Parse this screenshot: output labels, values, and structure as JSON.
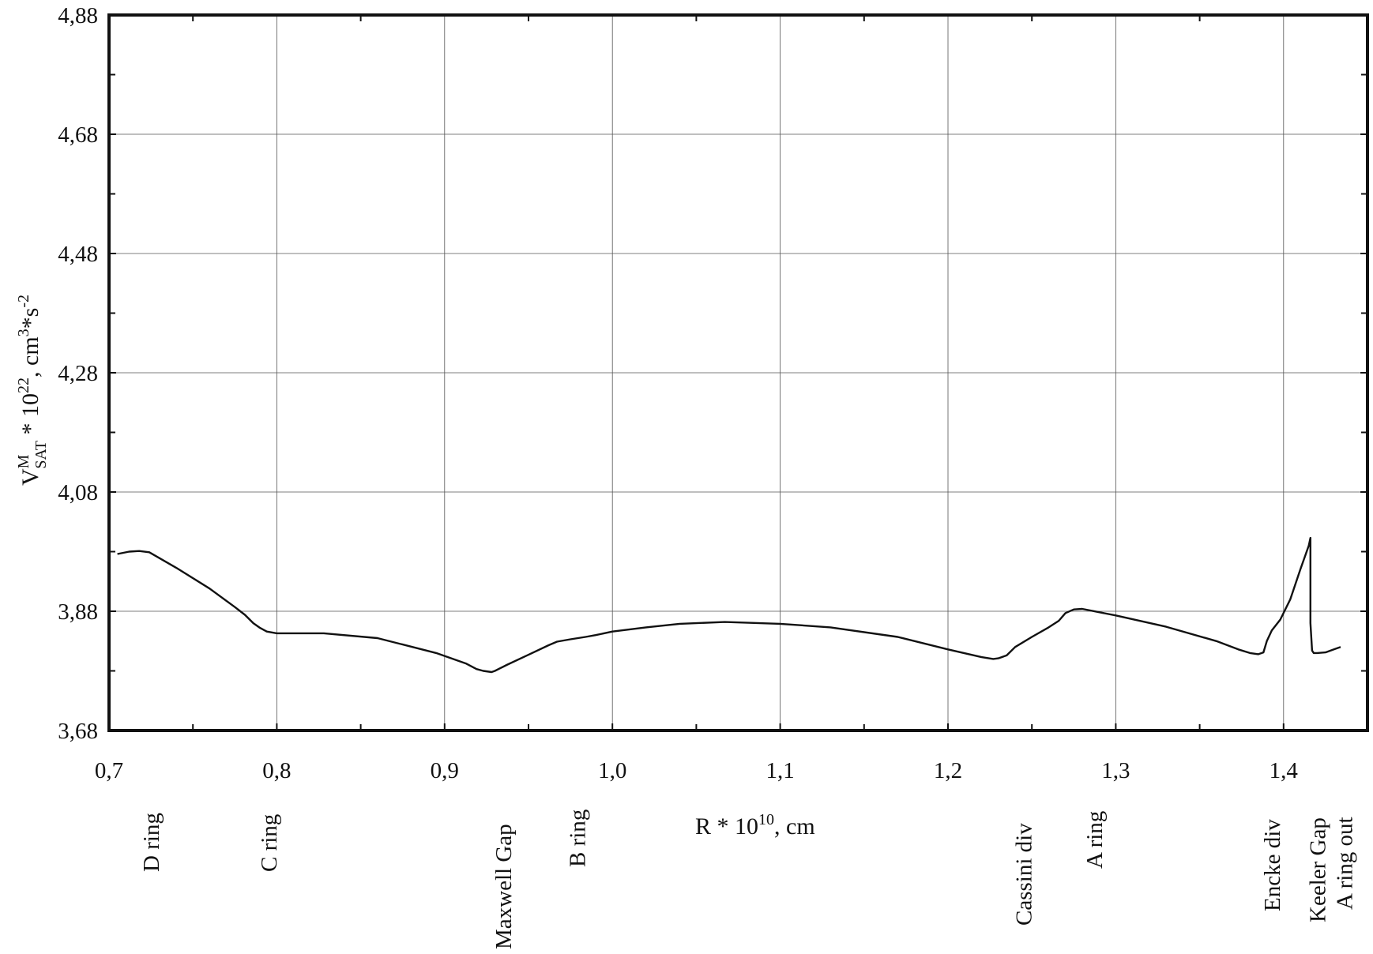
{
  "chart_data": {
    "type": "line",
    "xlabel": {
      "base": "R * 10",
      "sup": "10",
      "rest": ", cm"
    },
    "ylabel": {
      "v": "V",
      "sup_m": "M",
      "sub_sat": "SAT",
      "mid": " * 10",
      "sup_22": "22",
      "units": ", cm",
      "sup_3": "3",
      "star_s": "*s",
      "sup_m2": "-2"
    },
    "xlim": [
      0.7,
      1.45
    ],
    "ylim": [
      3.68,
      4.88
    ],
    "grid": true,
    "x_ticks": [
      {
        "value": 0.7,
        "label": "0,7"
      },
      {
        "value": 0.8,
        "label": "0,8"
      },
      {
        "value": 0.9,
        "label": "0,9"
      },
      {
        "value": 1.0,
        "label": "1,0"
      },
      {
        "value": 1.1,
        "label": "1,1"
      },
      {
        "value": 1.2,
        "label": "1,2"
      },
      {
        "value": 1.3,
        "label": "1,3"
      },
      {
        "value": 1.4,
        "label": "1,4"
      }
    ],
    "y_ticks": [
      {
        "value": 3.68,
        "label": "3,68"
      },
      {
        "value": 3.88,
        "label": "3,88"
      },
      {
        "value": 4.08,
        "label": "4,08"
      },
      {
        "value": 4.28,
        "label": "4,28"
      },
      {
        "value": 4.48,
        "label": "4,48"
      },
      {
        "value": 4.68,
        "label": "4,68"
      },
      {
        "value": 4.88,
        "label": "4,88"
      }
    ],
    "ring_labels": [
      {
        "x": 0.725,
        "text": "D ring"
      },
      {
        "x": 0.795,
        "text": "C ring"
      },
      {
        "x": 0.935,
        "text": "Maxwell Gap"
      },
      {
        "x": 0.979,
        "text": "B ring"
      },
      {
        "x": 1.245,
        "text": "Cassini div"
      },
      {
        "x": 1.287,
        "text": "A ring"
      },
      {
        "x": 1.393,
        "text": "Encke div"
      },
      {
        "x": 1.42,
        "text": "Keeler Gap"
      },
      {
        "x": 1.436,
        "text": "A ring out"
      }
    ],
    "series": [
      {
        "x": [
          0.705,
          0.712,
          0.718,
          0.724,
          0.74,
          0.76,
          0.775,
          0.781,
          0.786,
          0.79,
          0.794,
          0.8,
          0.828,
          0.86,
          0.895,
          0.913,
          0.919,
          0.923,
          0.928,
          0.93,
          0.937,
          0.95,
          0.962,
          0.967,
          0.975,
          0.984,
          0.99,
          1.0,
          1.02,
          1.04,
          1.067,
          1.1,
          1.13,
          1.17,
          1.2,
          1.22,
          1.227,
          1.23,
          1.235,
          1.24,
          1.25,
          1.26,
          1.266,
          1.27,
          1.275,
          1.28,
          1.3,
          1.33,
          1.36,
          1.373,
          1.38,
          1.385,
          1.387,
          1.388,
          1.39,
          1.393,
          1.398,
          1.404,
          1.41,
          1.415,
          1.416,
          1.416,
          1.417,
          1.418,
          1.42,
          1.425,
          1.43,
          1.434
        ],
        "y": [
          3.976,
          3.98,
          3.981,
          3.979,
          3.953,
          3.918,
          3.887,
          3.874,
          3.86,
          3.852,
          3.846,
          3.843,
          3.843,
          3.835,
          3.81,
          3.792,
          3.783,
          3.78,
          3.778,
          3.78,
          3.79,
          3.807,
          3.823,
          3.829,
          3.833,
          3.837,
          3.84,
          3.846,
          3.853,
          3.859,
          3.862,
          3.859,
          3.853,
          3.837,
          3.816,
          3.803,
          3.8,
          3.801,
          3.806,
          3.82,
          3.837,
          3.853,
          3.864,
          3.877,
          3.883,
          3.884,
          3.873,
          3.854,
          3.83,
          3.816,
          3.81,
          3.808,
          3.81,
          3.811,
          3.83,
          3.848,
          3.866,
          3.9,
          3.95,
          3.99,
          4.003,
          3.86,
          3.814,
          3.81,
          3.81,
          3.811,
          3.816,
          3.82
        ]
      }
    ]
  }
}
